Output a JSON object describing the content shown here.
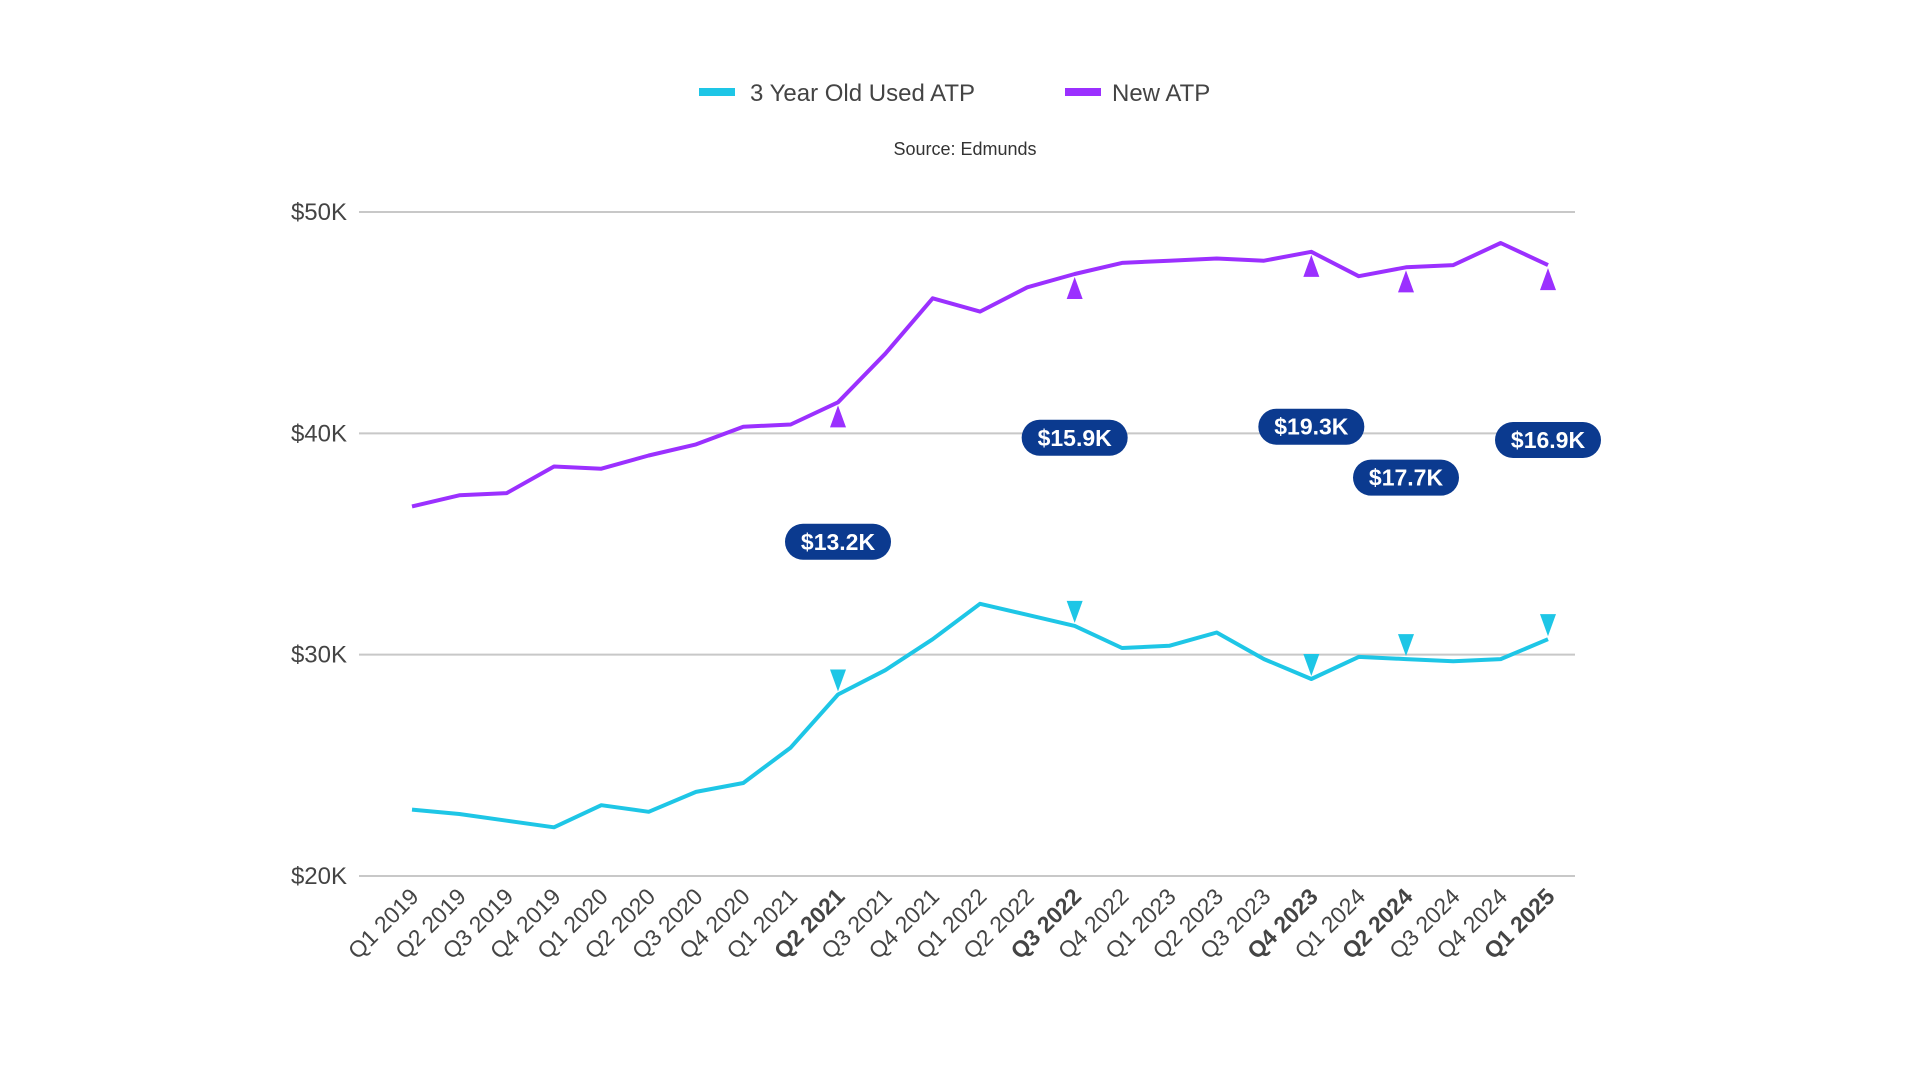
{
  "chart_data": {
    "type": "line",
    "title": "",
    "subtitle": "Source: Edmunds",
    "xlabel": "",
    "ylabel": "",
    "ylim": [
      20000,
      50000
    ],
    "grid": true,
    "legend_position": "top",
    "y_ticks": [
      {
        "value": 20000,
        "label": "$20K"
      },
      {
        "value": 30000,
        "label": "$30K"
      },
      {
        "value": 40000,
        "label": "$40K"
      },
      {
        "value": 50000,
        "label": "$50K"
      }
    ],
    "categories": [
      "Q1 2019",
      "Q2 2019",
      "Q3 2019",
      "Q4 2019",
      "Q1 2020",
      "Q2 2020",
      "Q3 2020",
      "Q4 2020",
      "Q1 2021",
      "Q2 2021",
      "Q3 2021",
      "Q4 2021",
      "Q1 2022",
      "Q2 2022",
      "Q3 2022",
      "Q4 2022",
      "Q1 2023",
      "Q2 2023",
      "Q3 2023",
      "Q4 2023",
      "Q1 2024",
      "Q2 2024",
      "Q3 2024",
      "Q4 2024",
      "Q1 2025"
    ],
    "bold_categories": [
      "Q2 2021",
      "Q3 2022",
      "Q4 2023",
      "Q2 2024",
      "Q1 2025"
    ],
    "series": [
      {
        "name": "3 Year Old Used ATP",
        "color": "#1ec6e6",
        "values": [
          23000,
          22800,
          22500,
          22200,
          23200,
          22900,
          23800,
          24200,
          25800,
          28200,
          29300,
          30700,
          32300,
          31800,
          31300,
          30300,
          30400,
          31000,
          29800,
          28900,
          29900,
          29800,
          29700,
          29800,
          30700
        ]
      },
      {
        "name": "New ATP",
        "color": "#9b30ff",
        "values": [
          36700,
          37200,
          37300,
          38500,
          38400,
          39000,
          39500,
          40300,
          40400,
          41400,
          43600,
          46100,
          45500,
          46600,
          47200,
          47700,
          47800,
          47900,
          47800,
          48200,
          47100,
          47500,
          47600,
          48600,
          47600
        ]
      }
    ],
    "annotations": [
      {
        "category": "Q2 2021",
        "label": "$13.2K"
      },
      {
        "category": "Q3 2022",
        "label": "$15.9K"
      },
      {
        "category": "Q4 2023",
        "label": "$19.3K"
      },
      {
        "category": "Q2 2024",
        "label": "$17.7K"
      },
      {
        "category": "Q1 2025",
        "label": "$16.9K"
      }
    ],
    "colors": {
      "badge": "#0b3a8f",
      "grid": "#c8c8c8",
      "text": "#444444"
    }
  }
}
